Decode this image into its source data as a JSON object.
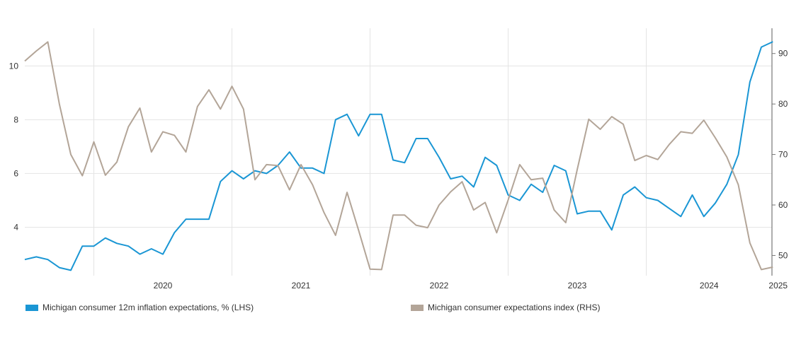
{
  "chart_data": {
    "type": "line",
    "x_tick_labels": [
      "2020",
      "2021",
      "2022",
      "2023",
      "2024",
      "2025"
    ],
    "x_tick_years": [
      2020,
      2021,
      2022,
      2023,
      2024,
      2025
    ],
    "start": "2019-07",
    "y_left": {
      "ticks": [
        4,
        6,
        8,
        10
      ],
      "range": [
        2.2,
        11.4
      ]
    },
    "y_right": {
      "ticks": [
        50,
        60,
        70,
        80,
        90
      ],
      "range": [
        46,
        95
      ]
    },
    "grid": true,
    "legend_position": "bottom",
    "series": [
      {
        "name": "Michigan consumer 12m inflation expectations, % (LHS)",
        "axis": "left",
        "color": "#1a96d4",
        "values": [
          2.8,
          2.9,
          2.8,
          2.5,
          2.4,
          3.3,
          3.3,
          3.6,
          3.4,
          3.3,
          3.0,
          3.2,
          3.0,
          3.8,
          4.3,
          4.3,
          4.3,
          5.7,
          6.1,
          5.8,
          6.1,
          6.0,
          6.3,
          6.8,
          6.2,
          6.2,
          6.0,
          8.0,
          8.2,
          7.4,
          8.2,
          8.2,
          6.5,
          6.4,
          7.3,
          7.3,
          6.6,
          5.8,
          5.9,
          5.5,
          6.6,
          6.3,
          5.2,
          5.0,
          5.6,
          5.3,
          6.3,
          6.1,
          4.5,
          4.6,
          4.6,
          3.9,
          5.2,
          5.5,
          5.1,
          5.0,
          4.7,
          4.4,
          5.2,
          4.4,
          4.9,
          5.6,
          6.7,
          9.4,
          10.7,
          10.9
        ]
      },
      {
        "name": "Michigan consumer expectations index (RHS)",
        "axis": "right",
        "color": "#b3a598",
        "values": [
          88.5,
          90.5,
          92.3,
          80.0,
          70.0,
          65.8,
          72.5,
          65.9,
          68.5,
          75.5,
          79.2,
          70.5,
          74.5,
          73.8,
          70.5,
          79.5,
          82.8,
          79.0,
          83.5,
          79.0,
          65.0,
          68.0,
          67.8,
          63.0,
          68.0,
          64.0,
          58.5,
          54.0,
          62.5,
          55.0,
          47.3,
          47.2,
          58.0,
          58.0,
          56.0,
          55.5,
          60.0,
          62.6,
          64.6,
          59.0,
          60.5,
          54.5,
          61.0,
          68.0,
          65.0,
          65.3,
          59.0,
          56.5,
          67.0,
          77.0,
          75.0,
          77.5,
          76.0,
          68.8,
          69.8,
          69.0,
          72.0,
          74.5,
          74.2,
          76.8,
          73.3,
          69.5,
          64.0,
          52.5,
          47.2,
          47.7
        ]
      }
    ]
  }
}
